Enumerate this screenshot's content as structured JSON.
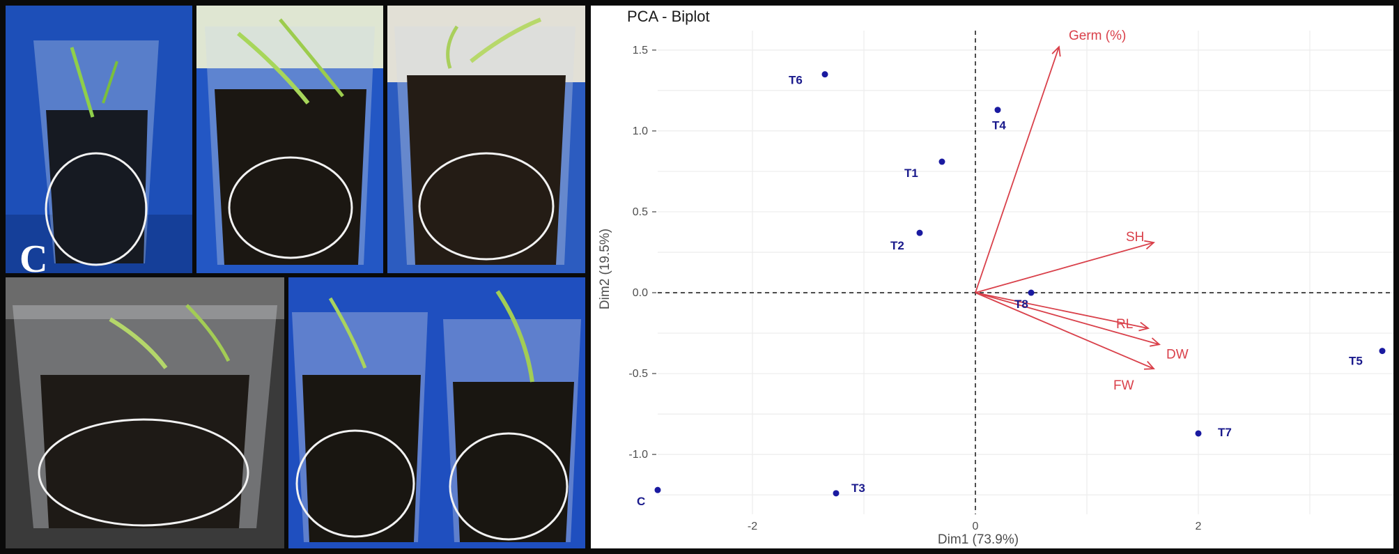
{
  "figure": {
    "photo_label": "C"
  },
  "colors": {
    "point": "#1a1aa0",
    "point_label": "#1a1a8c",
    "vector": "#d9404a",
    "grid": "#ececec",
    "axis_text": "#4d4d4d"
  },
  "chart_data": {
    "type": "scatter",
    "title": "PCA - Biplot",
    "xlabel": "Dim1 (73.9%)",
    "ylabel": "Dim2 (19.5%)",
    "xlim": [
      -2.85,
      3.75
    ],
    "ylim": [
      -1.37,
      1.62
    ],
    "xticks": [
      -2,
      0,
      2
    ],
    "xtick_labels": [
      "-2",
      "0",
      "2"
    ],
    "yticks": [
      -1.0,
      -0.5,
      0.0,
      0.5,
      1.0,
      1.5
    ],
    "ytick_labels": [
      "-1.0",
      "-0.5",
      "0.0",
      "0.5",
      "1.0",
      "1.5"
    ],
    "grid": true,
    "reference_lines": {
      "x": 0,
      "y": 0
    },
    "individuals": [
      {
        "label": "T6",
        "x": -1.35,
        "y": 1.35
      },
      {
        "label": "T4",
        "x": 0.2,
        "y": 1.13
      },
      {
        "label": "T1",
        "x": -0.3,
        "y": 0.81
      },
      {
        "label": "T2",
        "x": -0.5,
        "y": 0.37
      },
      {
        "label": "T8",
        "x": 0.5,
        "y": 0.0
      },
      {
        "label": "T5",
        "x": 3.65,
        "y": -0.36
      },
      {
        "label": "T7",
        "x": 2.0,
        "y": -0.87
      },
      {
        "label": "T3",
        "x": -1.25,
        "y": -1.24
      },
      {
        "label": "C",
        "x": -2.85,
        "y": -1.22
      }
    ],
    "variables": [
      {
        "label": "Germ (%)",
        "x": 0.75,
        "y": 1.52
      },
      {
        "label": "SH",
        "x": 1.6,
        "y": 0.31
      },
      {
        "label": "RL",
        "x": 1.55,
        "y": -0.22
      },
      {
        "label": "DW",
        "x": 1.65,
        "y": -0.32
      },
      {
        "label": "FW",
        "x": 1.6,
        "y": -0.47
      }
    ]
  }
}
